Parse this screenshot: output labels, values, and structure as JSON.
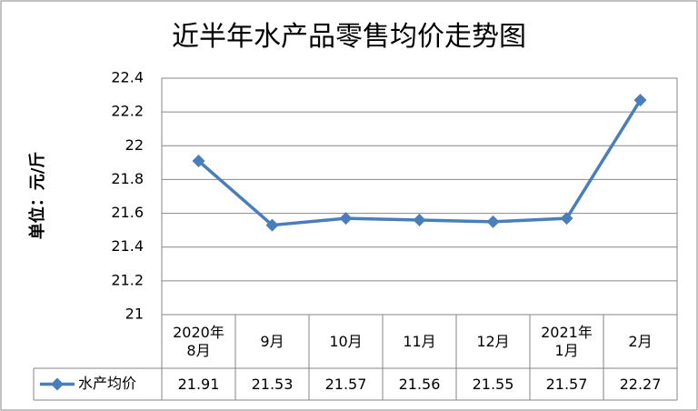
{
  "chart_data": {
    "type": "line",
    "title": "近半年水产品零售均价走势图",
    "y_label": "单位：元/斤",
    "categories": [
      "2020年\n8月",
      "9月",
      "10月",
      "11月",
      "12月",
      "2021年\n1月",
      "2月"
    ],
    "series": [
      {
        "name": "水产均价",
        "color": "#4a7ebb",
        "values": [
          21.91,
          21.53,
          21.57,
          21.56,
          21.55,
          21.57,
          22.27
        ]
      }
    ],
    "ylim": [
      21,
      22.4
    ],
    "yticks": [
      21,
      21.2,
      21.4,
      21.6,
      21.8,
      22,
      22.2,
      22.4
    ],
    "grid": true,
    "data_table": true
  }
}
